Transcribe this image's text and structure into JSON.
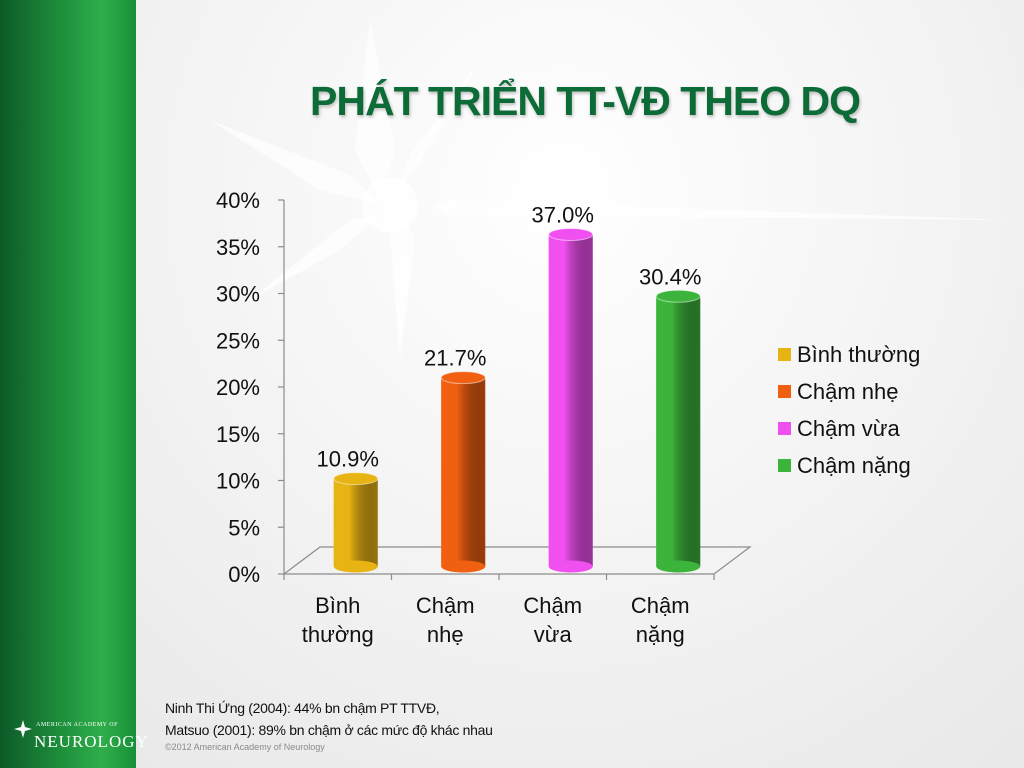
{
  "slide": {
    "title": "PHÁT TRIỂN TT-VĐ THEO DQ",
    "footnotes": [
      "Ninh Thi Ứng  (2004): 44% bn chậm PT TTVĐ,",
      "Matsuo (2001): 89% bn chậm ở các mức độ khác nhau"
    ],
    "copyright": "©2012 American Academy of Neurology",
    "logo": {
      "line1": "AMERICAN ACADEMY OF",
      "line2": "NEUROLOGY"
    }
  },
  "chart_data": {
    "type": "bar",
    "style": "3d-cylinder",
    "categories": [
      "Bình thường",
      "Chậm nhẹ",
      "Chậm vừa",
      "Chậm nặng"
    ],
    "category_lines": [
      [
        "Bình",
        "thường"
      ],
      [
        "Chậm",
        "nhẹ"
      ],
      [
        "Chậm",
        "vừa"
      ],
      [
        "Chậm",
        "nặng"
      ]
    ],
    "values": [
      10.9,
      21.7,
      37.0,
      30.4
    ],
    "data_labels": [
      "10.9%",
      "21.7%",
      "37.0%",
      "30.4%"
    ],
    "colors": [
      "#e8b414",
      "#f06010",
      "#f050f0",
      "#3cb43c"
    ],
    "yticks": [
      "0%",
      "5%",
      "10%",
      "15%",
      "20%",
      "25%",
      "30%",
      "35%",
      "40%"
    ],
    "ylim": [
      0,
      40
    ],
    "legend": {
      "placement": "right",
      "entries": [
        "Bình thường",
        "Chậm nhẹ",
        "Chậm vừa",
        "Chậm nặng"
      ]
    },
    "grid": false
  }
}
